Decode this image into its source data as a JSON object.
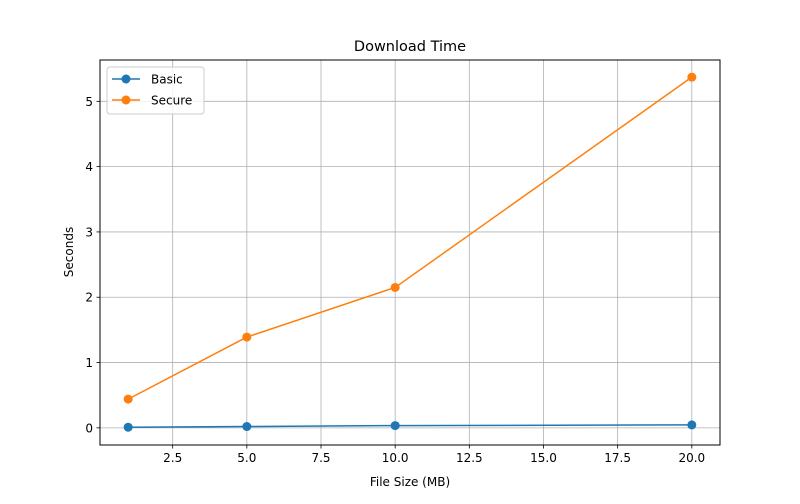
{
  "chart_data": {
    "type": "line",
    "title": "Download Time",
    "xlabel": "File Size (MB)",
    "ylabel": "Seconds",
    "xlim": [
      0.05,
      20.95
    ],
    "ylim": [
      -0.2626,
      5.6326
    ],
    "xticks": [
      2.5,
      5.0,
      7.5,
      10.0,
      12.5,
      15.0,
      17.5,
      20.0
    ],
    "xtick_labels": [
      "2.5",
      "5.0",
      "7.5",
      "10.0",
      "12.5",
      "15.0",
      "17.5",
      "20.0"
    ],
    "yticks": [
      0,
      1,
      2,
      3,
      4,
      5
    ],
    "ytick_labels": [
      "0",
      "1",
      "2",
      "3",
      "4",
      "5"
    ],
    "grid": true,
    "legend_position": "top-left",
    "x": [
      1,
      5,
      10,
      20
    ],
    "series": [
      {
        "name": "Basic",
        "color": "#1f77b4",
        "values": [
          0.01,
          0.02,
          0.035,
          0.045
        ]
      },
      {
        "name": "Secure",
        "color": "#ff7f0e",
        "values": [
          0.44,
          1.39,
          2.15,
          5.37
        ]
      }
    ]
  }
}
